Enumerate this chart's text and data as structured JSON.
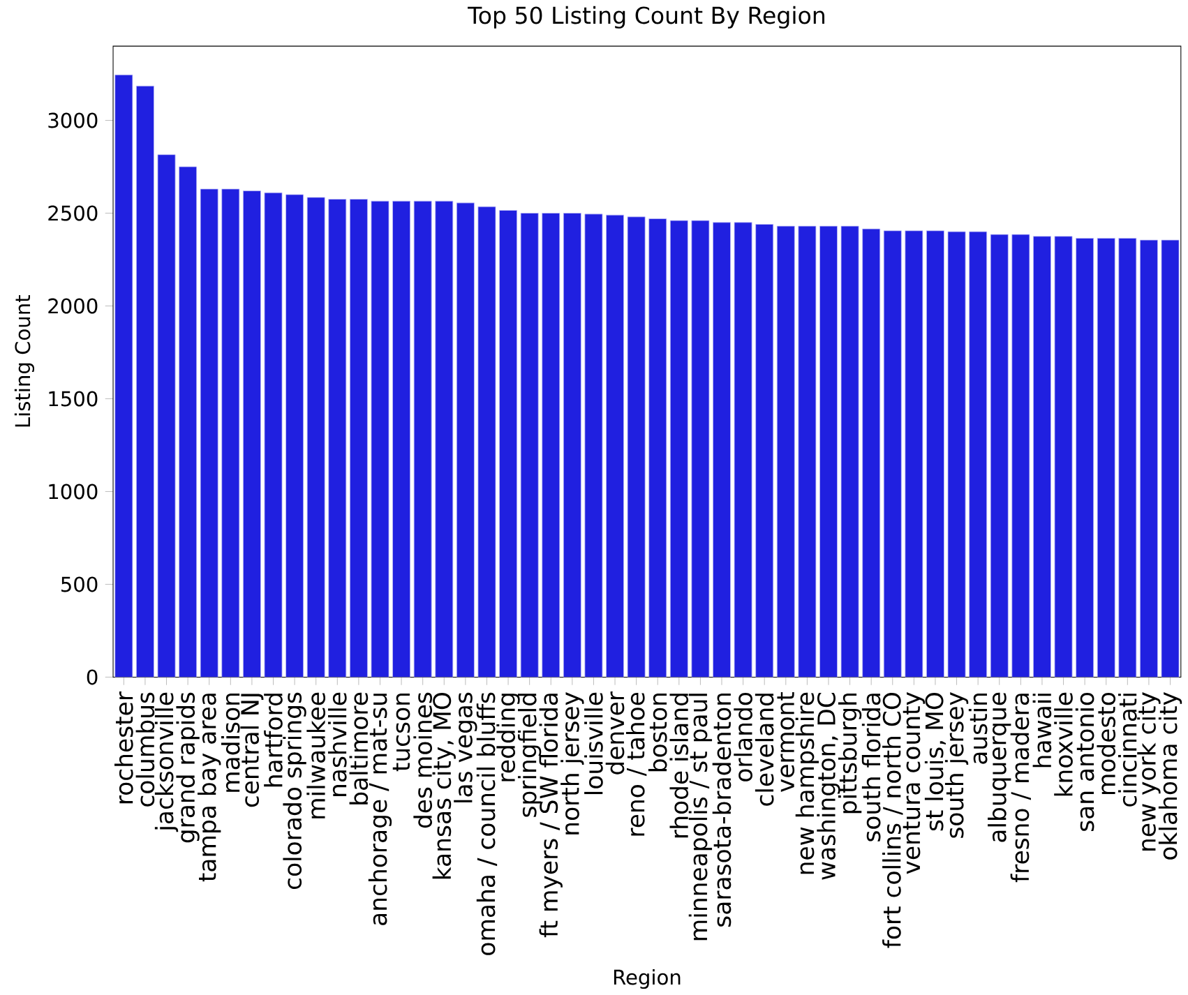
{
  "chart_data": {
    "type": "bar",
    "title": "Top 50 Listing Count By Region",
    "xlabel": "Region",
    "ylabel": "Listing Count",
    "categories": [
      "rochester",
      "columbus",
      "jacksonville",
      "grand rapids",
      "tampa bay area",
      "madison",
      "central NJ",
      "hartford",
      "colorado springs",
      "milwaukee",
      "nashville",
      "baltimore",
      "anchorage / mat-su",
      "tucson",
      "des moines",
      "kansas city, MO",
      "las vegas",
      "omaha / council bluffs",
      "redding",
      "springfield",
      "ft myers / SW florida",
      "north jersey",
      "louisville",
      "denver",
      "reno / tahoe",
      "boston",
      "rhode island",
      "minneapolis / st paul",
      "sarasota-bradenton",
      "orlando",
      "cleveland",
      "vermont",
      "new hampshire",
      "washington, DC",
      "pittsburgh",
      "south florida",
      "fort collins / north CO",
      "ventura county",
      "st louis, MO",
      "south jersey",
      "austin",
      "albuquerque",
      "fresno / madera",
      "hawaii",
      "knoxville",
      "san antonio",
      "modesto",
      "cincinnati",
      "new york city",
      "oklahoma city"
    ],
    "values": [
      3245,
      3185,
      2815,
      2750,
      2630,
      2630,
      2620,
      2610,
      2600,
      2585,
      2575,
      2575,
      2565,
      2565,
      2565,
      2565,
      2555,
      2535,
      2515,
      2500,
      2500,
      2500,
      2495,
      2490,
      2480,
      2470,
      2460,
      2460,
      2450,
      2450,
      2440,
      2430,
      2430,
      2430,
      2430,
      2415,
      2405,
      2405,
      2405,
      2400,
      2400,
      2385,
      2385,
      2375,
      2375,
      2365,
      2365,
      2365,
      2355,
      2355
    ],
    "color": "#2020e0",
    "ylim": [
      0,
      3400
    ],
    "yticks": [
      0,
      500,
      1000,
      1500,
      2000,
      2500,
      3000
    ]
  }
}
